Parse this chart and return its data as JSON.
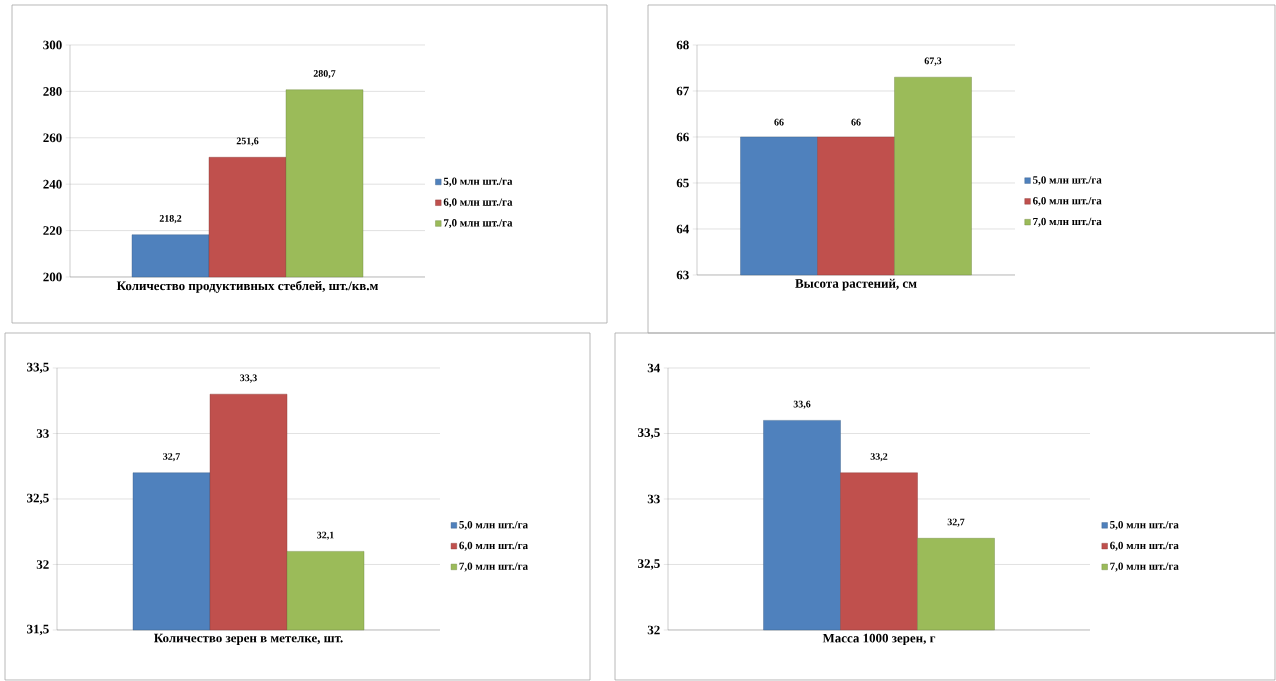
{
  "chart_data": [
    {
      "type": "bar",
      "xlabel": "Количество продуктивных стеблей, шт./кв.м",
      "categories": [
        null
      ],
      "ylim": [
        200,
        300
      ],
      "yticks": [
        200,
        220,
        240,
        260,
        280,
        300
      ],
      "grid": "y",
      "legend": "right",
      "series": [
        {
          "name": "5,0 млн шт./га",
          "color": "#4f81bd",
          "values": [
            218.2
          ],
          "value_labels": [
            "218,2"
          ]
        },
        {
          "name": "6,0 млн шт./га",
          "color": "#c0504d",
          "values": [
            251.6
          ],
          "value_labels": [
            "251,6"
          ]
        },
        {
          "name": "7,0 млн шт./га",
          "color": "#9bbb59",
          "values": [
            280.7
          ],
          "value_labels": [
            "280,7"
          ]
        }
      ]
    },
    {
      "type": "bar",
      "xlabel": "Высота растений, см",
      "categories": [
        null
      ],
      "ylim": [
        63,
        68
      ],
      "yticks": [
        63,
        64,
        65,
        66,
        67,
        68
      ],
      "grid": "y",
      "legend": "right",
      "series": [
        {
          "name": "5,0 млн шт./га",
          "color": "#4f81bd",
          "values": [
            66
          ],
          "value_labels": [
            "66"
          ]
        },
        {
          "name": "6,0 млн шт./га",
          "color": "#c0504d",
          "values": [
            66
          ],
          "value_labels": [
            "66"
          ]
        },
        {
          "name": "7,0 млн шт./га",
          "color": "#9bbb59",
          "values": [
            67.3
          ],
          "value_labels": [
            "67,3"
          ]
        }
      ]
    },
    {
      "type": "bar",
      "xlabel": "Количество зерен в метелке, шт.",
      "categories": [
        null
      ],
      "ylim": [
        31.5,
        33.5
      ],
      "yticks": [
        {
          "value": 31.5,
          "label": "31,5"
        },
        32,
        {
          "value": 32.5,
          "label": "32,5"
        },
        33,
        {
          "value": 33.5,
          "label": "33,5"
        }
      ],
      "grid": "y",
      "legend": "right",
      "series": [
        {
          "name": "5,0 млн шт./га",
          "color": "#4f81bd",
          "values": [
            32.7
          ],
          "value_labels": [
            "32,7"
          ]
        },
        {
          "name": "6,0 млн шт./га",
          "color": "#c0504d",
          "values": [
            33.3
          ],
          "value_labels": [
            "33,3"
          ]
        },
        {
          "name": "7,0 млн шт./га",
          "color": "#9bbb59",
          "values": [
            32.1
          ],
          "value_labels": [
            "32,1"
          ]
        }
      ]
    },
    {
      "type": "bar",
      "xlabel": "Масса 1000 зерен, г",
      "categories": [
        null
      ],
      "ylim": [
        32,
        34
      ],
      "yticks": [
        32,
        {
          "value": 32.5,
          "label": "32,5"
        },
        33,
        {
          "value": 33.5,
          "label": "33,5"
        },
        34
      ],
      "grid": "y",
      "legend": "right",
      "series": [
        {
          "name": "5,0 млн шт./га",
          "color": "#4f81bd",
          "values": [
            33.6
          ],
          "value_labels": [
            "33,6"
          ]
        },
        {
          "name": "6,0 млн шт./га",
          "color": "#c0504d",
          "values": [
            33.2
          ],
          "value_labels": [
            "33,2"
          ]
        },
        {
          "name": "7,0 млн шт./га",
          "color": "#9bbb59",
          "values": [
            32.7
          ],
          "value_labels": [
            "32,7"
          ]
        }
      ]
    }
  ]
}
